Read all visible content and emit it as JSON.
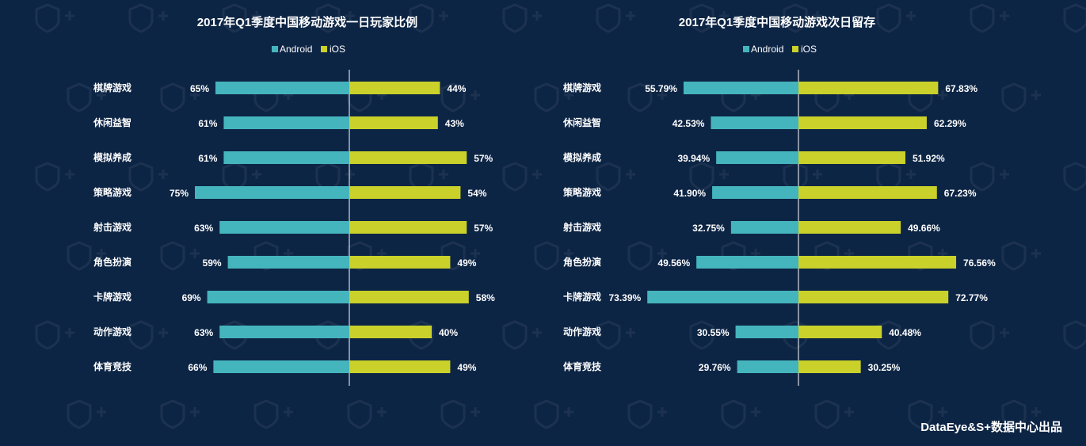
{
  "colors": {
    "background": "#0d2545",
    "android": "#45b5bd",
    "ios": "#c9d12a",
    "axis": "#ffffff",
    "text": "#ffffff"
  },
  "legend": {
    "android": "Android",
    "ios": "iOS"
  },
  "footer": {
    "text": "DataEye&S+数据中心出品"
  },
  "chart_data": [
    {
      "type": "bar",
      "orientation": "diverging-horizontal",
      "title": "2017年Q1季度中国移动游戏一日玩家比例",
      "categories": [
        "棋牌游戏",
        "休闲益智",
        "模拟养成",
        "策略游戏",
        "射击游戏",
        "角色扮演",
        "卡牌游戏",
        "动作游戏",
        "体育竞技"
      ],
      "max": 100,
      "series": [
        {
          "name": "Android",
          "values": [
            65,
            61,
            61,
            75,
            63,
            59,
            69,
            63,
            66
          ],
          "labels": [
            "65%",
            "61%",
            "61%",
            "75%",
            "63%",
            "59%",
            "69%",
            "63%",
            "66%"
          ]
        },
        {
          "name": "iOS",
          "values": [
            44,
            43,
            57,
            54,
            57,
            49,
            58,
            40,
            49
          ],
          "labels": [
            "44%",
            "43%",
            "57%",
            "54%",
            "57%",
            "49%",
            "58%",
            "40%",
            "49%"
          ]
        }
      ]
    },
    {
      "type": "bar",
      "orientation": "diverging-horizontal",
      "title": "2017年Q1季度中国移动游戏次日留存",
      "categories": [
        "棋牌游戏",
        "休闲益智",
        "模拟养成",
        "策略游戏",
        "射击游戏",
        "角色扮演",
        "卡牌游戏",
        "动作游戏",
        "体育竞技"
      ],
      "max": 100,
      "series": [
        {
          "name": "Android",
          "values": [
            55.79,
            42.53,
            39.94,
            41.9,
            32.75,
            49.56,
            73.39,
            30.55,
            29.76
          ],
          "labels": [
            "55.79%",
            "42.53%",
            "39.94%",
            "41.90%",
            "32.75%",
            "49.56%",
            "73.39%",
            "30.55%",
            "29.76%"
          ]
        },
        {
          "name": "iOS",
          "values": [
            67.83,
            62.29,
            51.92,
            67.23,
            49.66,
            76.56,
            72.77,
            40.48,
            30.25
          ],
          "labels": [
            "67.83%",
            "62.29%",
            "51.92%",
            "67.23%",
            "49.66%",
            "76.56%",
            "72.77%",
            "40.48%",
            "30.25%"
          ]
        }
      ]
    }
  ]
}
